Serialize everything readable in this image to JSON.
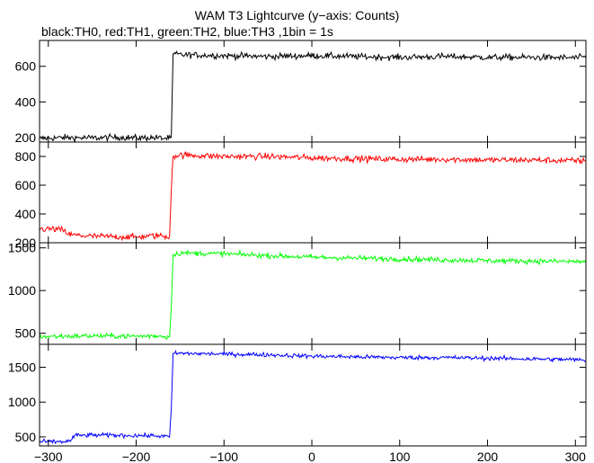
{
  "title": "WAM T3 Lightcurve (y−axis: Counts)",
  "subtitle": "black:TH0, red:TH1, green:TH2, blue:TH3 ,1bin = 1s",
  "chart_data": {
    "type": "line",
    "title": "WAM T3 Lightcurve (y−axis: Counts)",
    "subtitle": "black:TH0, red:TH1, green:TH2, blue:TH3 ,1bin = 1s",
    "x_range": [
      -310,
      312
    ],
    "x_ticks": [
      -300,
      -200,
      -100,
      0,
      100,
      200,
      300
    ],
    "x_tick_labels": [
      "−300",
      "−200",
      "−100",
      "0",
      "100",
      "200",
      "300"
    ],
    "grid": false,
    "panels": [
      {
        "series": "TH0",
        "color": "#000000",
        "ylim": [
          175,
          745
        ],
        "y_ticks": [
          200,
          400,
          600
        ],
        "y_tick_labels": [
          "200",
          "400",
          "600"
        ],
        "x": [
          -310,
          -280,
          -250,
          -220,
          -200,
          -180,
          -165,
          -160,
          -158,
          -150,
          -100,
          -50,
          0,
          50,
          100,
          150,
          200,
          250,
          300,
          310
        ],
        "values": [
          195,
          200,
          198,
          202,
          198,
          200,
          195,
          200,
          670,
          665,
          660,
          655,
          660,
          655,
          650,
          655,
          650,
          650,
          648,
          650
        ],
        "noise": 16
      },
      {
        "series": "TH1",
        "color": "#ff0000",
        "ylim": [
          200,
          900
        ],
        "y_ticks": [
          200,
          400,
          600,
          800
        ],
        "y_tick_labels": [
          "200",
          "400",
          "600",
          "800"
        ],
        "x": [
          -310,
          -295,
          -285,
          -275,
          -250,
          -200,
          -175,
          -162,
          -160,
          -159,
          -158,
          -150,
          -100,
          -50,
          0,
          50,
          100,
          150,
          200,
          250,
          300,
          310
        ],
        "values": [
          295,
          295,
          290,
          255,
          245,
          240,
          250,
          240,
          560,
          700,
          800,
          810,
          800,
          800,
          790,
          785,
          780,
          780,
          775,
          775,
          770,
          770
        ],
        "noise": 20
      },
      {
        "series": "TH2",
        "color": "#00ff00",
        "ylim": [
          370,
          1560
        ],
        "y_ticks": [
          500,
          1000,
          1500
        ],
        "y_tick_labels": [
          "500",
          "1000",
          "1500"
        ],
        "x": [
          -310,
          -250,
          -200,
          -175,
          -162,
          -160,
          -159,
          -158,
          -150,
          -100,
          -50,
          0,
          50,
          100,
          150,
          200,
          250,
          300,
          310
        ],
        "values": [
          460,
          470,
          465,
          470,
          455,
          800,
          1100,
          1420,
          1440,
          1430,
          1410,
          1390,
          1380,
          1370,
          1360,
          1350,
          1345,
          1340,
          1340
        ],
        "noise": 28
      },
      {
        "series": "TH3",
        "color": "#0000ff",
        "ylim": [
          370,
          1830
        ],
        "y_ticks": [
          500,
          1000,
          1500
        ],
        "y_tick_labels": [
          "500",
          "1000",
          "1500"
        ],
        "x": [
          -310,
          -285,
          -275,
          -270,
          -250,
          -200,
          -175,
          -162,
          -160,
          -159,
          -158,
          -150,
          -100,
          -50,
          0,
          50,
          100,
          150,
          200,
          250,
          300,
          310
        ],
        "values": [
          430,
          430,
          440,
          520,
          525,
          520,
          515,
          500,
          900,
          1300,
          1700,
          1700,
          1690,
          1680,
          1660,
          1650,
          1640,
          1640,
          1630,
          1620,
          1610,
          1600
        ],
        "noise": 28
      }
    ]
  }
}
